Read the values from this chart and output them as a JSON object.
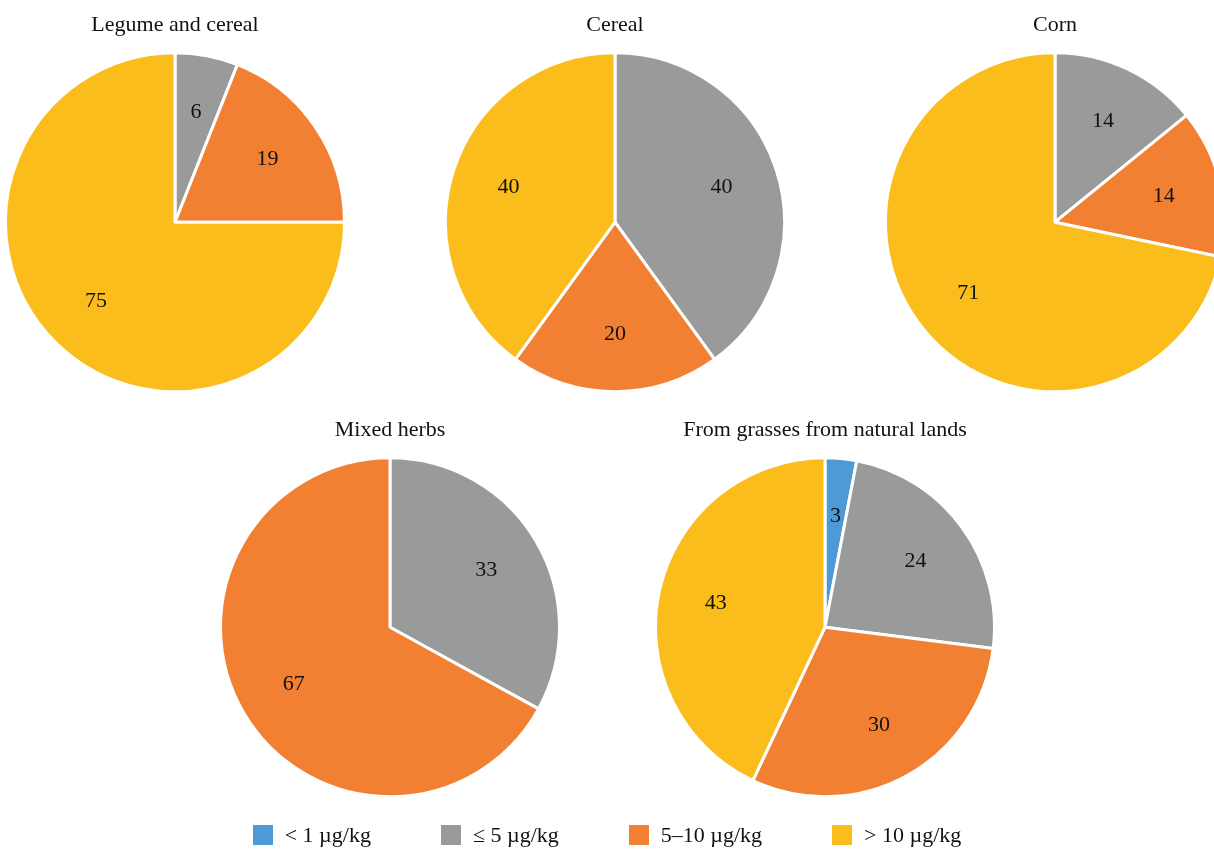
{
  "chart_data": [
    {
      "type": "pie",
      "title": "Legume and cereal",
      "categories": [
        null,
        null,
        null
      ],
      "values": [
        6,
        19,
        75
      ],
      "colors": [
        "#999b9b",
        "#f28033",
        "#fbbd1c"
      ],
      "data_labels": true
    },
    {
      "type": "pie",
      "title": "Cereal",
      "categories": [
        null,
        null,
        null
      ],
      "values": [
        40,
        20,
        40
      ],
      "colors": [
        "#999b9b",
        "#f28033",
        "#fbbd1c"
      ],
      "data_labels": true
    },
    {
      "type": "pie",
      "title": "Corn",
      "categories": [
        null,
        null,
        null
      ],
      "values": [
        14,
        14,
        71
      ],
      "colors": [
        "#999b9b",
        "#f28033",
        "#fbbd1c"
      ],
      "data_labels": true
    },
    {
      "type": "pie",
      "title": "Mixed herbs",
      "categories": [
        null,
        null
      ],
      "values": [
        33,
        67
      ],
      "colors": [
        "#999b9b",
        "#f28033"
      ],
      "data_labels": true
    },
    {
      "type": "pie",
      "title": "From grasses from natural lands",
      "categories": [
        "< 1 µg/kg",
        "≤ 5 µg/kg",
        "5–10 µg/kg",
        "> 10 µg/kg"
      ],
      "values": [
        3,
        24,
        30,
        43
      ],
      "colors": [
        "#4e9ad6",
        "#999b9b",
        "#f28033",
        "#fbbd1c"
      ],
      "data_labels": true,
      "legend": "bottom"
    }
  ]
}
